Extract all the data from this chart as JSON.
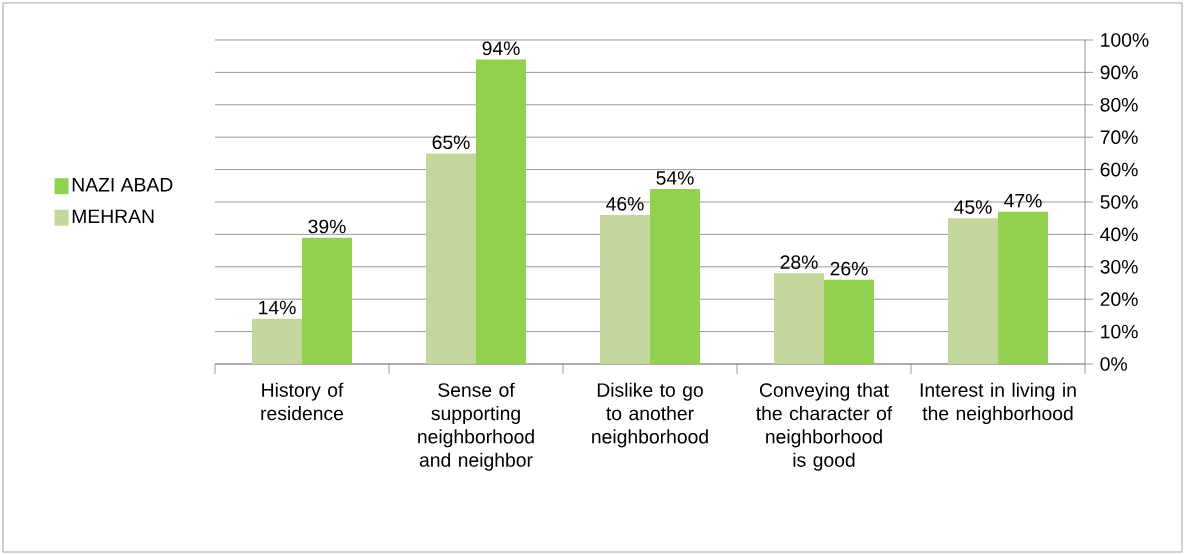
{
  "chart_data": {
    "type": "bar",
    "categories": [
      "History of residence",
      "Sense of supporting neighborhood and neighbor",
      "Dislike to go to another neighborhood",
      "Conveying that the character of neighborhood is good",
      "Interest in living in the neighborhood"
    ],
    "series": [
      {
        "name": "MEHRAN",
        "color": "#c3d69b",
        "values": [
          14,
          65,
          46,
          28,
          45
        ],
        "value_labels": [
          "14%",
          "65%",
          "46%",
          "28%",
          "45%"
        ]
      },
      {
        "name": "NAZI ABAD",
        "color": "#92d050",
        "values": [
          39,
          94,
          54,
          26,
          47
        ],
        "value_labels": [
          "39%",
          "94%",
          "54%",
          "26%",
          "47%"
        ]
      }
    ],
    "ylim": [
      0,
      100
    ],
    "yticks": [
      {
        "value": 0,
        "label": "0%"
      },
      {
        "value": 10,
        "label": "10%"
      },
      {
        "value": 20,
        "label": "20%"
      },
      {
        "value": 30,
        "label": "30%"
      },
      {
        "value": 40,
        "label": "40%"
      },
      {
        "value": 50,
        "label": "50%"
      },
      {
        "value": 60,
        "label": "60%"
      },
      {
        "value": 70,
        "label": "70%"
      },
      {
        "value": 80,
        "label": "80%"
      },
      {
        "value": 90,
        "label": "90%"
      },
      {
        "value": 100,
        "label": "100%"
      }
    ],
    "grid": "y",
    "legend": "left"
  }
}
